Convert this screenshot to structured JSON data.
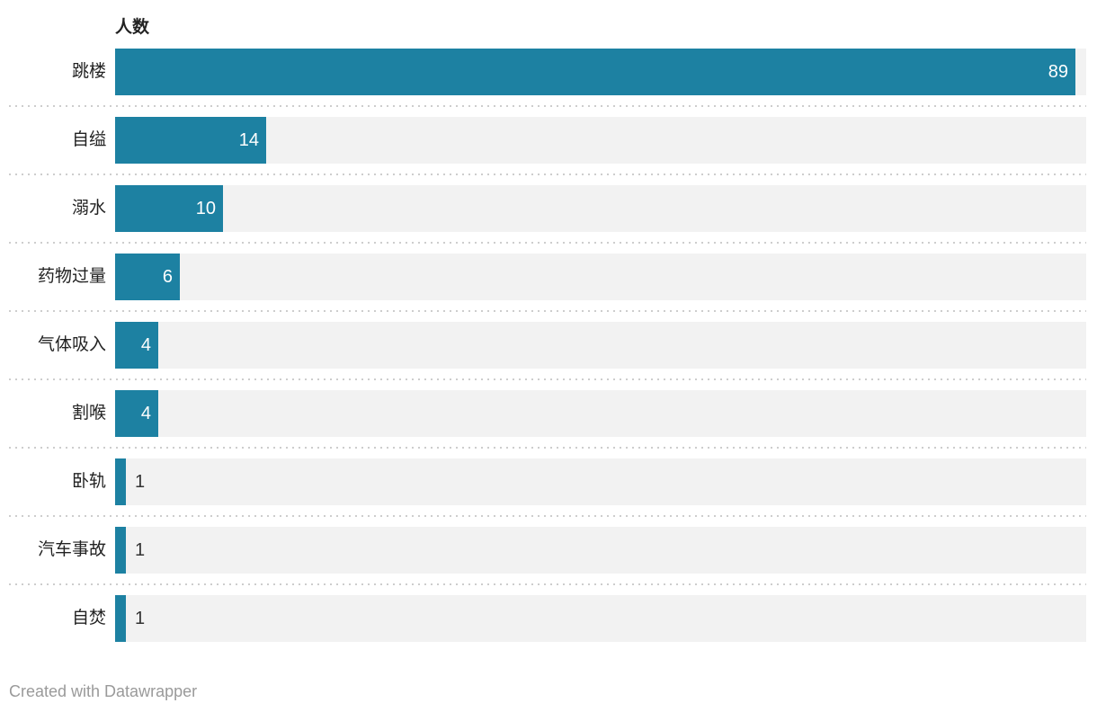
{
  "page": {
    "background": "#ffffff"
  },
  "chart_data": {
    "type": "bar",
    "orientation": "horizontal",
    "column_header": "人数",
    "categories": [
      "跳楼",
      "自缢",
      "溺水",
      "药物过量",
      "气体吸入",
      "割喉",
      "卧轨",
      "汽车事故",
      "自焚"
    ],
    "values": [
      89,
      14,
      10,
      6,
      4,
      4,
      1,
      1,
      1
    ],
    "axis_max": 90,
    "bar_color": "#1d81a2",
    "track_color": "#f2f2f2",
    "separator_color": "#cdcdcd",
    "label_color": "#222222",
    "value_label_inside_color": "#ffffff",
    "value_label_outside_color": "#333333",
    "legend_position": "none",
    "grid": "dotted-row-separators"
  },
  "footer": {
    "credit": "Created with Datawrapper"
  }
}
